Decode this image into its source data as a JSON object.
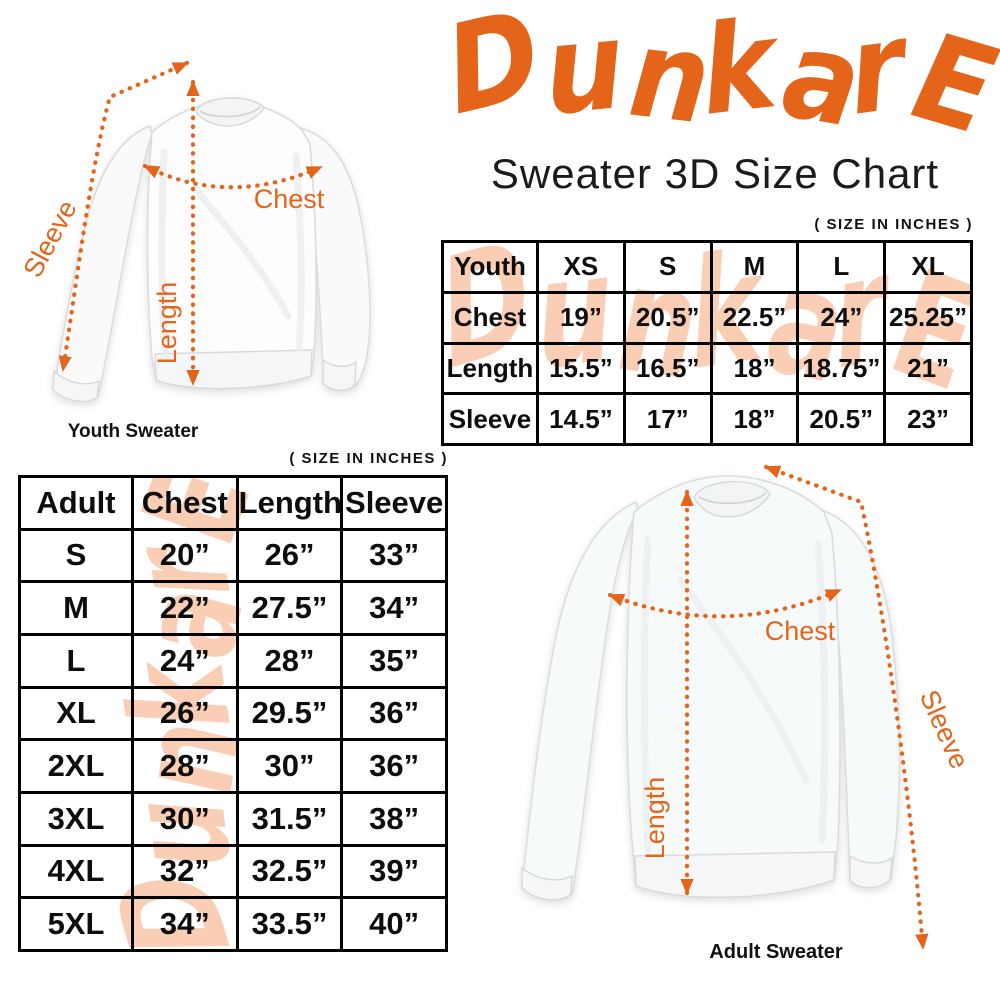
{
  "brand": {
    "logo": "DunkarE",
    "subtitle": "Sweater 3D Size Chart"
  },
  "size_note": "( SIZE IN INCHES )",
  "youth_figure": {
    "caption": "Youth Sweater",
    "labels": {
      "sleeve": "Sleeve",
      "length": "Length",
      "chest": "Chest"
    }
  },
  "adult_figure": {
    "caption": "Adult Sweater",
    "labels": {
      "sleeve": "Sleeve",
      "length": "Length",
      "chest": "Chest"
    }
  },
  "youth_table": {
    "header": [
      "Youth",
      "XS",
      "S",
      "M",
      "L",
      "XL"
    ],
    "rows": [
      [
        "Chest",
        "19”",
        "20.5”",
        "22.5”",
        "24”",
        "25.25”"
      ],
      [
        "Length",
        "15.5”",
        "16.5”",
        "18”",
        "18.75”",
        "21”"
      ],
      [
        "Sleeve",
        "14.5”",
        "17”",
        "18”",
        "20.5”",
        "23”"
      ]
    ]
  },
  "adult_table": {
    "header": [
      "Adult",
      "Chest",
      "Length",
      "Sleeve"
    ],
    "rows": [
      [
        "S",
        "20”",
        "26”",
        "33”"
      ],
      [
        "M",
        "22”",
        "27.5”",
        "34”"
      ],
      [
        "L",
        "24”",
        "28”",
        "35”"
      ],
      [
        "XL",
        "26”",
        "29.5”",
        "36”"
      ],
      [
        "2XL",
        "28”",
        "30”",
        "36”"
      ],
      [
        "3XL",
        "30”",
        "31.5”",
        "38”"
      ],
      [
        "4XL",
        "32”",
        "32.5”",
        "39”"
      ],
      [
        "5XL",
        "34”",
        "33.5”",
        "40”"
      ]
    ]
  },
  "chart_data": [
    {
      "type": "table",
      "title": "Youth sweater sizes (inches)",
      "categories": [
        "XS",
        "S",
        "M",
        "L",
        "XL"
      ],
      "series": [
        {
          "name": "Chest",
          "values": [
            19,
            20.5,
            22.5,
            24,
            25.25
          ]
        },
        {
          "name": "Length",
          "values": [
            15.5,
            16.5,
            18,
            18.75,
            21
          ]
        },
        {
          "name": "Sleeve",
          "values": [
            14.5,
            17,
            18,
            20.5,
            23
          ]
        }
      ]
    },
    {
      "type": "table",
      "title": "Adult sweater sizes (inches)",
      "categories": [
        "S",
        "M",
        "L",
        "XL",
        "2XL",
        "3XL",
        "4XL",
        "5XL"
      ],
      "series": [
        {
          "name": "Chest",
          "values": [
            20,
            22,
            24,
            26,
            28,
            30,
            32,
            34
          ]
        },
        {
          "name": "Length",
          "values": [
            26,
            27.5,
            28,
            29.5,
            30,
            31.5,
            32.5,
            33.5
          ]
        },
        {
          "name": "Sleeve",
          "values": [
            33,
            34,
            35,
            36,
            36,
            38,
            39,
            40
          ]
        }
      ]
    }
  ],
  "colors": {
    "accent": "#E4651A",
    "watermark": "#F9CEB5",
    "table_border": "#000000",
    "text": "#141414"
  }
}
